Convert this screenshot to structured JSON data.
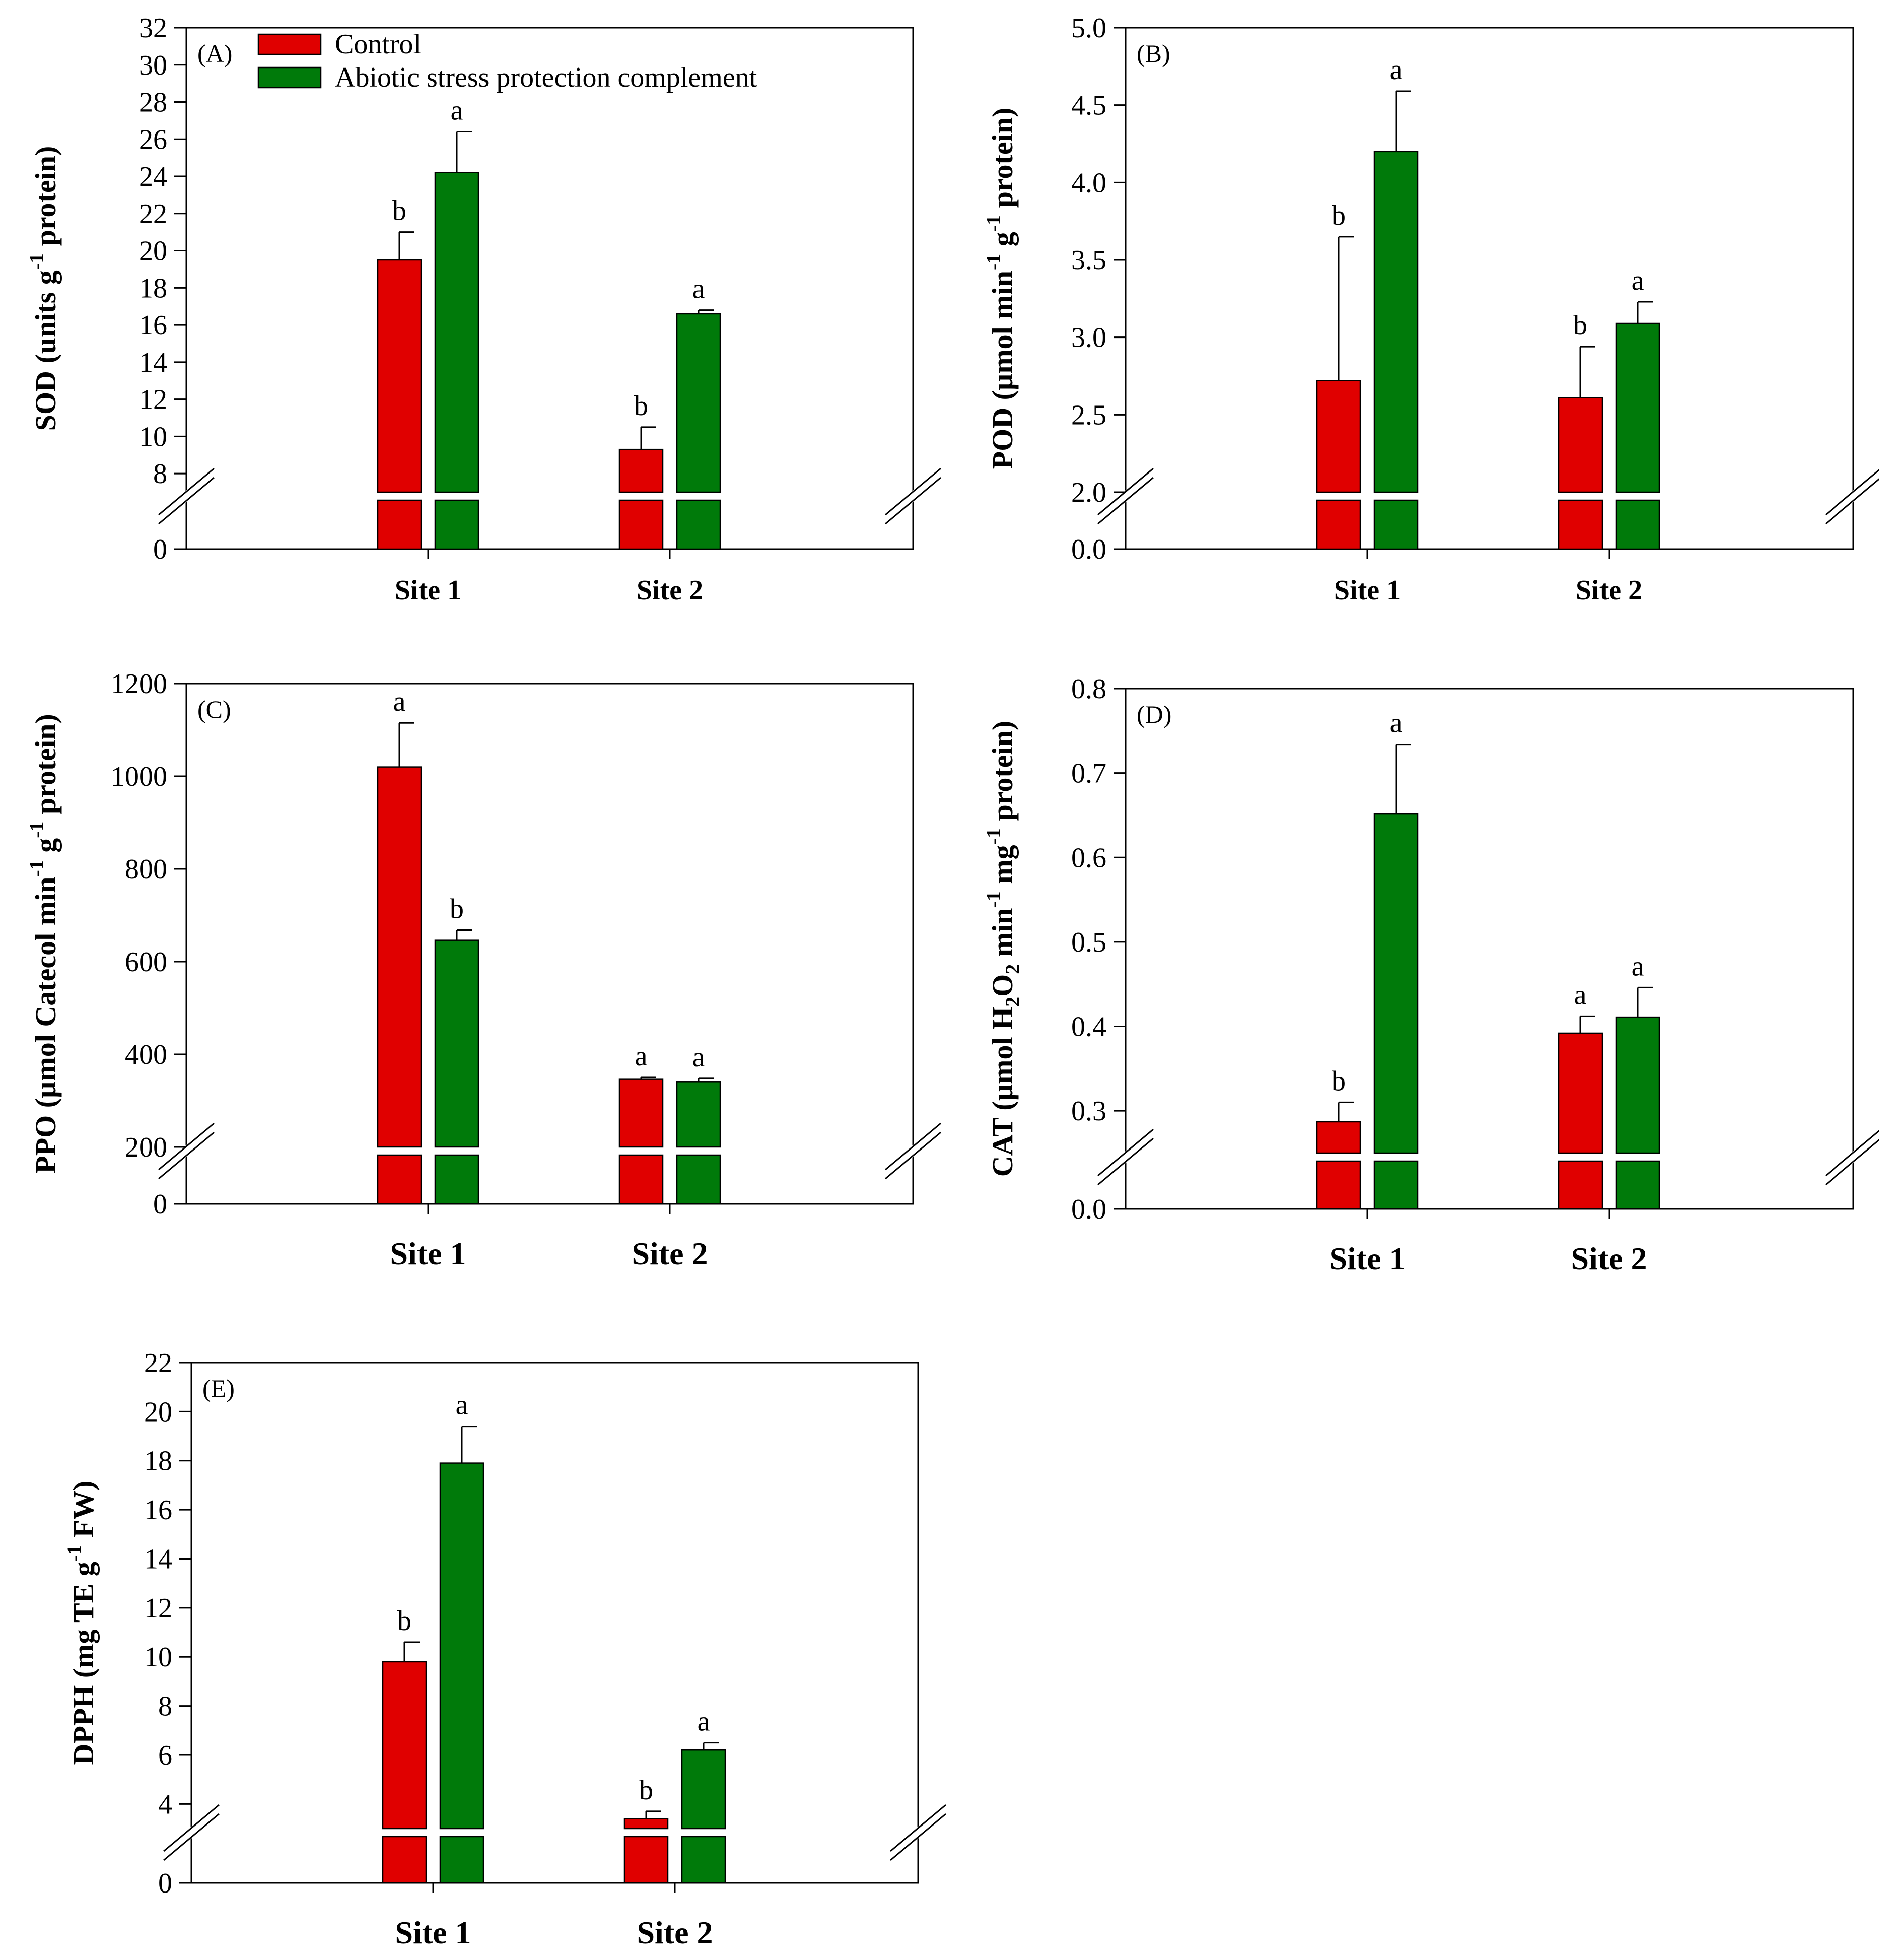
{
  "figure": {
    "legend": [
      "Control",
      "Abiotic stress protection complement"
    ]
  },
  "colors": {
    "control": "#e00000",
    "treatment": "#007a0a",
    "frame": "#000000"
  },
  "chart_data": [
    {
      "id": "A",
      "type": "bar",
      "panel_label": "(A)",
      "ylabel": {
        "main": "SOD (units g",
        "sup": "-1",
        "tail": " protein)"
      },
      "categories": [
        "Site 1",
        "Site 2"
      ],
      "series": [
        {
          "name": "Control",
          "values": [
            19.5,
            9.3
          ],
          "errors": [
            1.5,
            1.2
          ],
          "sig": [
            "b",
            "b"
          ]
        },
        {
          "name": "Abiotic stress protection complement",
          "values": [
            24.2,
            16.6
          ],
          "errors": [
            2.2,
            0.2
          ],
          "sig": [
            "a",
            "a"
          ]
        }
      ],
      "ylim_lower": [
        0,
        7
      ],
      "ylim_upper": [
        7,
        32
      ],
      "yticks_lower": [
        0
      ],
      "yticks_upper": [
        8,
        10,
        12,
        14,
        16,
        18,
        20,
        22,
        24,
        26,
        28,
        30,
        32
      ],
      "ytick_labels_lower": [
        "0"
      ],
      "ytick_labels_upper": [
        "8",
        "10",
        "12",
        "14",
        "16",
        "18",
        "20",
        "22",
        "24",
        "26",
        "28",
        "30",
        "32"
      ],
      "show_legend": true
    },
    {
      "id": "B",
      "type": "bar",
      "panel_label": "(B)",
      "ylabel": {
        "main": "POD (µmol min",
        "sup": "-1",
        "mid": " g",
        "sup2": "-1",
        "tail": " protein)"
      },
      "categories": [
        "Site 1",
        "Site 2"
      ],
      "series": [
        {
          "name": "Control",
          "values": [
            2.72,
            2.61
          ],
          "errors": [
            0.93,
            0.33
          ],
          "sig": [
            "b",
            "b"
          ]
        },
        {
          "name": "Abiotic stress protection complement",
          "values": [
            4.2,
            3.09
          ],
          "errors": [
            0.39,
            0.14
          ],
          "sig": [
            "a",
            "a"
          ]
        }
      ],
      "ylim_lower": [
        0,
        2
      ],
      "ylim_upper": [
        2,
        5
      ],
      "yticks_lower": [
        0
      ],
      "yticks_upper": [
        2.0,
        2.5,
        3.0,
        3.5,
        4.0,
        4.5,
        5.0
      ],
      "ytick_labels_lower": [
        "0.0"
      ],
      "ytick_labels_upper": [
        "2.0",
        "2.5",
        "3.0",
        "3.5",
        "4.0",
        "4.5",
        "5.0"
      ],
      "show_legend": false
    },
    {
      "id": "C",
      "type": "bar",
      "panel_label": "(C)",
      "ylabel": {
        "main": "PPO (µmol Catecol min",
        "sup": "-1",
        "mid": "  g",
        "sup2": "-1",
        "tail": " protein)"
      },
      "categories": [
        "Site 1",
        "Site 2"
      ],
      "series": [
        {
          "name": "Control",
          "values": [
            1020,
            346
          ],
          "errors": [
            95,
            4
          ],
          "sig": [
            "a",
            "a"
          ]
        },
        {
          "name": "Abiotic stress protection complement",
          "values": [
            646,
            341
          ],
          "errors": [
            22,
            7
          ],
          "sig": [
            "b",
            "a"
          ]
        }
      ],
      "ylim_lower": [
        0,
        200
      ],
      "ylim_upper": [
        200,
        1200
      ],
      "yticks_lower": [
        0
      ],
      "yticks_upper": [
        200,
        400,
        600,
        800,
        1000,
        1200
      ],
      "ytick_labels_lower": [
        "0"
      ],
      "ytick_labels_upper": [
        "200",
        "400",
        "600",
        "800",
        "1000",
        "1200"
      ],
      "show_legend": false
    },
    {
      "id": "D",
      "type": "bar",
      "panel_label": "(D)",
      "ylabel": {
        "main": "CAT (µmol H",
        "sub": "2",
        "main2": "O",
        "sub2": "2",
        "main3": " min",
        "sup": "-1",
        "mid": " mg",
        "sup2": "-1",
        "tail": " protein)"
      },
      "categories": [
        "Site 1",
        "Site 2"
      ],
      "series": [
        {
          "name": "Control",
          "values": [
            0.287,
            0.392
          ],
          "errors": [
            0.023,
            0.02
          ],
          "sig": [
            "b",
            "a"
          ]
        },
        {
          "name": "Abiotic stress protection complement",
          "values": [
            0.652,
            0.411
          ],
          "errors": [
            0.082,
            0.035
          ],
          "sig": [
            "a",
            "a"
          ]
        }
      ],
      "ylim_lower": [
        0,
        0.25
      ],
      "ylim_upper": [
        0.25,
        0.8
      ],
      "yticks_lower": [
        0
      ],
      "yticks_upper": [
        0.3,
        0.4,
        0.5,
        0.6,
        0.7,
        0.8
      ],
      "ytick_labels_lower": [
        "0.0"
      ],
      "ytick_labels_upper": [
        "0.3",
        "0.4",
        "0.5",
        "0.6",
        "0.7",
        "0.8"
      ],
      "show_legend": false
    },
    {
      "id": "E",
      "type": "bar",
      "panel_label": "(E)",
      "ylabel": {
        "main": "DPPH (mg TE g",
        "sup": "-1",
        "tail": " FW)"
      },
      "categories": [
        "Site 1",
        "Site 2"
      ],
      "series": [
        {
          "name": "Control",
          "values": [
            9.8,
            3.4
          ],
          "errors": [
            0.8,
            0.3
          ],
          "sig": [
            "b",
            "b"
          ]
        },
        {
          "name": "Abiotic stress protection complement",
          "values": [
            17.9,
            6.2
          ],
          "errors": [
            1.5,
            0.3
          ],
          "sig": [
            "a",
            "a"
          ]
        }
      ],
      "ylim_lower": [
        0,
        3
      ],
      "ylim_upper": [
        3,
        22
      ],
      "yticks_lower": [
        0
      ],
      "yticks_upper": [
        4,
        6,
        8,
        10,
        12,
        14,
        16,
        18,
        20,
        22
      ],
      "ytick_labels_lower": [
        "0"
      ],
      "ytick_labels_upper": [
        "4",
        "6",
        "8",
        "10",
        "12",
        "14",
        "16",
        "18",
        "20",
        "22"
      ],
      "show_legend": false
    }
  ]
}
